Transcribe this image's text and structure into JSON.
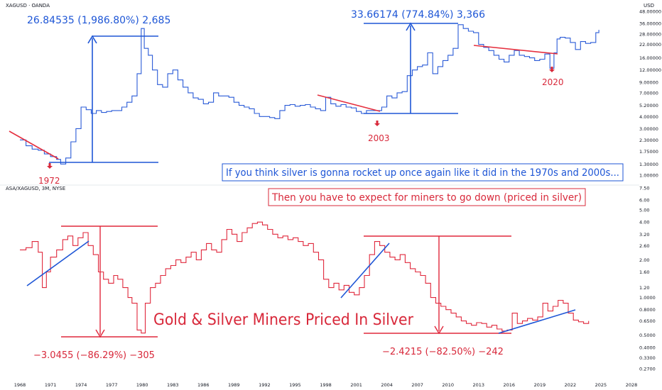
{
  "colors": {
    "silver_series": "#2a5bd7",
    "miners_series": "#e0283c",
    "annotation_blue": "#1e56d6",
    "annotation_red": "#d8283a",
    "axis_text": "#131722",
    "divider": "#e6e8ee"
  },
  "chart_data": [
    {
      "type": "line",
      "pane": "top",
      "title": "XAGUSD · OANDA",
      "y_unit": "USD",
      "y_scale": "log",
      "ylim": [
        1.0,
        48.0
      ],
      "y_ticks": [
        {
          "v": 48,
          "label": "48.00000"
        },
        {
          "v": 36,
          "label": "36.00000"
        },
        {
          "v": 28,
          "label": "28.00000"
        },
        {
          "v": 22,
          "label": "22.00000"
        },
        {
          "v": 16,
          "label": "16.00000"
        },
        {
          "v": 12,
          "label": "12.00000"
        },
        {
          "v": 9,
          "label": "9.00000"
        },
        {
          "v": 7,
          "label": "7.00000"
        },
        {
          "v": 5.2,
          "label": "5.20000"
        },
        {
          "v": 4,
          "label": "4.00000"
        },
        {
          "v": 3,
          "label": "3.00000"
        },
        {
          "v": 2.3,
          "label": "2.30000"
        },
        {
          "v": 1.75,
          "label": "1.75000"
        },
        {
          "v": 1.3,
          "label": "1.30000"
        },
        {
          "v": 1.0,
          "label": "1.00000"
        }
      ],
      "series": [
        {
          "values": [
            [
              1968.0,
              2.3
            ],
            [
              1968.6,
              2.0
            ],
            [
              1969.2,
              1.85
            ],
            [
              1969.8,
              1.8
            ],
            [
              1970.4,
              1.65
            ],
            [
              1971.0,
              1.55
            ],
            [
              1971.6,
              1.45
            ],
            [
              1972.0,
              1.3
            ],
            [
              1972.5,
              1.5
            ],
            [
              1973.0,
              2.2
            ],
            [
              1973.5,
              3.0
            ],
            [
              1974.0,
              5.0
            ],
            [
              1974.5,
              4.7
            ],
            [
              1975.0,
              4.3
            ],
            [
              1975.5,
              4.6
            ],
            [
              1976.0,
              4.4
            ],
            [
              1976.5,
              4.5
            ],
            [
              1977.0,
              4.6
            ],
            [
              1977.5,
              4.6
            ],
            [
              1978.0,
              5.0
            ],
            [
              1978.5,
              5.6
            ],
            [
              1979.0,
              6.5
            ],
            [
              1979.5,
              11.0
            ],
            [
              1979.9,
              32.0
            ],
            [
              1980.2,
              20.0
            ],
            [
              1980.6,
              17.0
            ],
            [
              1981.0,
              12.0
            ],
            [
              1981.5,
              8.5
            ],
            [
              1982.0,
              8.0
            ],
            [
              1982.5,
              11.0
            ],
            [
              1983.0,
              12.0
            ],
            [
              1983.5,
              9.5
            ],
            [
              1984.0,
              8.0
            ],
            [
              1984.5,
              7.0
            ],
            [
              1985.0,
              6.2
            ],
            [
              1985.5,
              6.0
            ],
            [
              1986.0,
              5.4
            ],
            [
              1986.5,
              5.6
            ],
            [
              1987.0,
              7.0
            ],
            [
              1987.5,
              6.5
            ],
            [
              1988.0,
              6.5
            ],
            [
              1988.5,
              6.3
            ],
            [
              1989.0,
              5.6
            ],
            [
              1989.5,
              5.2
            ],
            [
              1990.0,
              5.0
            ],
            [
              1990.5,
              4.8
            ],
            [
              1991.0,
              4.3
            ],
            [
              1991.5,
              4.0
            ],
            [
              1992.0,
              4.0
            ],
            [
              1992.5,
              3.9
            ],
            [
              1993.0,
              3.8
            ],
            [
              1993.5,
              4.6
            ],
            [
              1994.0,
              5.2
            ],
            [
              1994.5,
              5.3
            ],
            [
              1995.0,
              5.1
            ],
            [
              1995.5,
              5.2
            ],
            [
              1996.0,
              5.3
            ],
            [
              1996.5,
              5.0
            ],
            [
              1997.0,
              4.8
            ],
            [
              1997.5,
              4.6
            ],
            [
              1998.0,
              6.3
            ],
            [
              1998.5,
              5.4
            ],
            [
              1999.0,
              5.1
            ],
            [
              1999.5,
              5.3
            ],
            [
              2000.0,
              5.0
            ],
            [
              2000.5,
              4.9
            ],
            [
              2001.0,
              4.5
            ],
            [
              2001.5,
              4.3
            ],
            [
              2002.0,
              4.6
            ],
            [
              2002.5,
              4.6
            ],
            [
              2003.0,
              4.6
            ],
            [
              2003.5,
              5.0
            ],
            [
              2004.0,
              6.5
            ],
            [
              2004.5,
              6.2
            ],
            [
              2005.0,
              7.0
            ],
            [
              2005.5,
              7.2
            ],
            [
              2006.0,
              10.5
            ],
            [
              2006.5,
              12.0
            ],
            [
              2007.0,
              13.0
            ],
            [
              2007.5,
              13.5
            ],
            [
              2008.0,
              18.0
            ],
            [
              2008.5,
              11.0
            ],
            [
              2009.0,
              13.0
            ],
            [
              2009.5,
              15.0
            ],
            [
              2010.0,
              17.0
            ],
            [
              2010.5,
              20.0
            ],
            [
              2011.0,
              35.0
            ],
            [
              2011.5,
              32.0
            ],
            [
              2012.0,
              30.0
            ],
            [
              2012.5,
              29.0
            ],
            [
              2013.0,
              22.0
            ],
            [
              2013.5,
              20.5
            ],
            [
              2014.0,
              19.0
            ],
            [
              2014.5,
              17.0
            ],
            [
              2015.0,
              15.5
            ],
            [
              2015.5,
              14.5
            ],
            [
              2016.0,
              17.0
            ],
            [
              2016.5,
              19.0
            ],
            [
              2017.0,
              17.0
            ],
            [
              2017.5,
              16.5
            ],
            [
              2018.0,
              16.0
            ],
            [
              2018.5,
              15.0
            ],
            [
              2019.0,
              15.5
            ],
            [
              2019.5,
              17.5
            ],
            [
              2020.0,
              12.5
            ],
            [
              2020.4,
              18.0
            ],
            [
              2020.7,
              25.0
            ],
            [
              2021.0,
              26.0
            ],
            [
              2021.5,
              25.5
            ],
            [
              2022.0,
              23.0
            ],
            [
              2022.5,
              19.5
            ],
            [
              2023.0,
              23.5
            ],
            [
              2023.5,
              22.5
            ],
            [
              2024.0,
              23.0
            ],
            [
              2024.5,
              29.0
            ],
            [
              2024.8,
              31.0
            ]
          ]
        }
      ]
    },
    {
      "type": "line",
      "pane": "bottom",
      "title": "ASA/XAGUSD, 3M, NYSE",
      "y_scale": "log",
      "ylim": [
        0.27,
        7.5
      ],
      "y_ticks": [
        {
          "v": 7.5,
          "label": "7.50"
        },
        {
          "v": 6.0,
          "label": "6.00"
        },
        {
          "v": 5.0,
          "label": "5.00"
        },
        {
          "v": 4.0,
          "label": "4.00"
        },
        {
          "v": 3.2,
          "label": "3.20"
        },
        {
          "v": 2.6,
          "label": "2.60"
        },
        {
          "v": 2.0,
          "label": "2.00"
        },
        {
          "v": 1.6,
          "label": "1.60"
        },
        {
          "v": 1.2,
          "label": "1.20"
        },
        {
          "v": 1.0,
          "label": "1.0000"
        },
        {
          "v": 0.8,
          "label": "0.8000"
        },
        {
          "v": 0.65,
          "label": "0.6500"
        },
        {
          "v": 0.5,
          "label": "0.5000"
        },
        {
          "v": 0.4,
          "label": "0.4000"
        },
        {
          "v": 0.33,
          "label": "0.3300"
        },
        {
          "v": 0.27,
          "label": "0.2700"
        }
      ],
      "series": [
        {
          "values": [
            [
              1968.0,
              2.4
            ],
            [
              1968.6,
              2.5
            ],
            [
              1969.2,
              2.8
            ],
            [
              1969.8,
              2.3
            ],
            [
              1970.2,
              1.2
            ],
            [
              1970.6,
              1.6
            ],
            [
              1971.0,
              2.1
            ],
            [
              1971.6,
              2.4
            ],
            [
              1972.2,
              2.9
            ],
            [
              1972.7,
              3.1
            ],
            [
              1973.2,
              2.6
            ],
            [
              1973.7,
              3.0
            ],
            [
              1974.2,
              3.3
            ],
            [
              1974.7,
              2.6
            ],
            [
              1975.2,
              2.2
            ],
            [
              1975.7,
              1.6
            ],
            [
              1976.2,
              1.4
            ],
            [
              1976.7,
              1.3
            ],
            [
              1977.2,
              1.5
            ],
            [
              1977.6,
              1.4
            ],
            [
              1978.1,
              1.2
            ],
            [
              1978.6,
              1.0
            ],
            [
              1979.0,
              0.9
            ],
            [
              1979.5,
              0.55
            ],
            [
              1979.9,
              0.52
            ],
            [
              1980.3,
              0.9
            ],
            [
              1980.8,
              1.2
            ],
            [
              1981.3,
              1.3
            ],
            [
              1981.8,
              1.5
            ],
            [
              1982.3,
              1.7
            ],
            [
              1982.8,
              1.8
            ],
            [
              1983.3,
              2.0
            ],
            [
              1983.8,
              1.9
            ],
            [
              1984.3,
              2.1
            ],
            [
              1984.8,
              2.3
            ],
            [
              1985.3,
              2.0
            ],
            [
              1985.8,
              2.4
            ],
            [
              1986.3,
              2.7
            ],
            [
              1986.8,
              2.4
            ],
            [
              1987.3,
              2.3
            ],
            [
              1987.8,
              2.9
            ],
            [
              1988.3,
              3.5
            ],
            [
              1988.8,
              3.2
            ],
            [
              1989.3,
              2.8
            ],
            [
              1989.8,
              3.3
            ],
            [
              1990.3,
              3.6
            ],
            [
              1990.8,
              3.9
            ],
            [
              1991.3,
              4.0
            ],
            [
              1991.8,
              3.8
            ],
            [
              1992.3,
              3.5
            ],
            [
              1992.8,
              3.2
            ],
            [
              1993.3,
              3.0
            ],
            [
              1993.8,
              3.1
            ],
            [
              1994.3,
              2.9
            ],
            [
              1994.8,
              3.0
            ],
            [
              1995.3,
              2.8
            ],
            [
              1995.8,
              2.6
            ],
            [
              1996.3,
              2.7
            ],
            [
              1996.8,
              2.3
            ],
            [
              1997.3,
              2.0
            ],
            [
              1997.8,
              1.4
            ],
            [
              1998.3,
              1.2
            ],
            [
              1998.8,
              1.3
            ],
            [
              1999.3,
              1.15
            ],
            [
              1999.8,
              1.25
            ],
            [
              2000.3,
              1.1
            ],
            [
              2000.8,
              1.05
            ],
            [
              2001.3,
              1.2
            ],
            [
              2001.8,
              1.5
            ],
            [
              2002.3,
              2.2
            ],
            [
              2002.8,
              2.8
            ],
            [
              2003.3,
              2.6
            ],
            [
              2003.8,
              2.3
            ],
            [
              2004.3,
              2.1
            ],
            [
              2004.8,
              2.0
            ],
            [
              2005.3,
              2.2
            ],
            [
              2005.8,
              1.9
            ],
            [
              2006.3,
              1.7
            ],
            [
              2006.8,
              1.6
            ],
            [
              2007.3,
              1.5
            ],
            [
              2007.8,
              1.3
            ],
            [
              2008.3,
              1.0
            ],
            [
              2008.8,
              0.9
            ],
            [
              2009.3,
              0.85
            ],
            [
              2009.8,
              0.8
            ],
            [
              2010.3,
              0.75
            ],
            [
              2010.8,
              0.7
            ],
            [
              2011.3,
              0.65
            ],
            [
              2011.8,
              0.62
            ],
            [
              2012.3,
              0.6
            ],
            [
              2012.8,
              0.63
            ],
            [
              2013.3,
              0.62
            ],
            [
              2013.8,
              0.58
            ],
            [
              2014.3,
              0.6
            ],
            [
              2014.8,
              0.56
            ],
            [
              2015.3,
              0.54
            ],
            [
              2015.8,
              0.55
            ],
            [
              2016.3,
              0.75
            ],
            [
              2016.8,
              0.62
            ],
            [
              2017.3,
              0.65
            ],
            [
              2017.8,
              0.68
            ],
            [
              2018.3,
              0.66
            ],
            [
              2018.8,
              0.7
            ],
            [
              2019.3,
              0.9
            ],
            [
              2019.8,
              0.78
            ],
            [
              2020.3,
              0.85
            ],
            [
              2020.8,
              0.95
            ],
            [
              2021.3,
              0.9
            ],
            [
              2021.8,
              0.75
            ],
            [
              2022.3,
              0.66
            ],
            [
              2022.8,
              0.64
            ],
            [
              2023.3,
              0.62
            ],
            [
              2023.8,
              0.65
            ]
          ]
        }
      ]
    }
  ],
  "x_axis": {
    "tick_labels": [
      "1968",
      "1971",
      "1974",
      "1977",
      "1980",
      "1983",
      "1986",
      "1989",
      "1992",
      "1995",
      "1998",
      "2001",
      "2004",
      "2007",
      "2010",
      "2013",
      "2016",
      "2019",
      "2022",
      "2025",
      "2028"
    ]
  },
  "annotations": {
    "top_label_1970s": "26.84535 (1,986.80%) 2,685",
    "top_label_2000s": "33.66174 (774.84%) 3,366",
    "low_1972": "1972",
    "low_2003": "2003",
    "low_2020": "2020",
    "banner_blue": "If you think silver is gonna rocket up once again like it did in the 1970s and 2000s...",
    "banner_red": "Then you have to expect for miners to go down (priced in silver)",
    "headline": "Gold & Silver Miners Priced In Silver",
    "bottom_label_1970s": "−3.0455 (−86.29%) −305",
    "bottom_label_2000s": "−2.4215 (−82.50%) −242"
  }
}
